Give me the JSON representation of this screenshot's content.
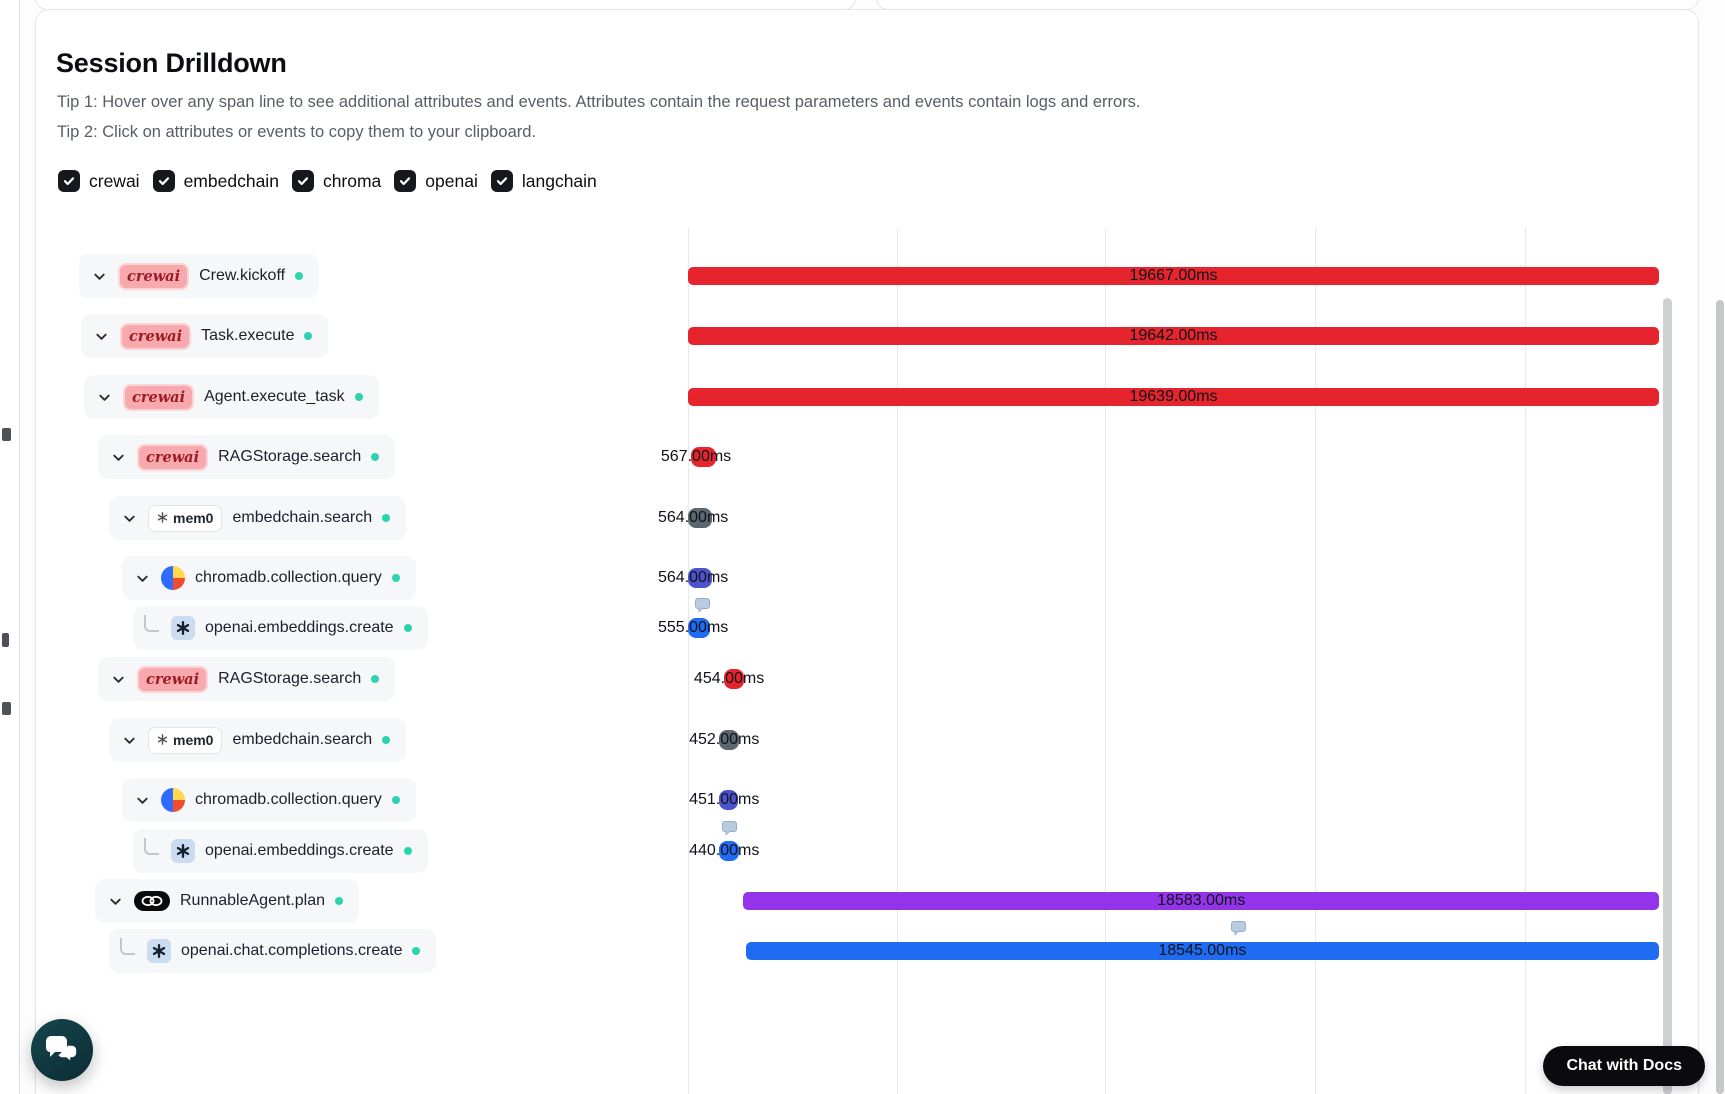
{
  "header": {
    "title": "Session Drilldown",
    "tip1": "Tip 1: Hover over any span line to see additional attributes and events. Attributes contain the request parameters and events contain logs and errors.",
    "tip2": "Tip 2: Click on attributes or events to copy them to your clipboard."
  },
  "filters": [
    {
      "label": "crewai",
      "checked": true
    },
    {
      "label": "embedchain",
      "checked": true
    },
    {
      "label": "chroma",
      "checked": true
    },
    {
      "label": "openai",
      "checked": true
    },
    {
      "label": "langchain",
      "checked": true
    }
  ],
  "logos": {
    "crewai": {
      "text": "crewai",
      "bg": "#f8a9ae",
      "fg": "#9b1c24"
    },
    "mem0": {
      "text": "mem0"
    },
    "chroma": {
      "colors": [
        "#ffd84d",
        "#ef4d2c",
        "#2f6bff"
      ]
    },
    "openai": {
      "bg": "#ccdcf0",
      "fg": "#16202e"
    },
    "langchain": {
      "bg": "#0a0a0a"
    }
  },
  "colors": {
    "red": "#e5242d",
    "slate": "#5c6671",
    "indigo": "#4d53cb",
    "blue": "#1f6bf1",
    "purple": "#9333ea",
    "dot": "#2bd4ae"
  },
  "chart_data": {
    "type": "trace-waterfall",
    "unit": "ms",
    "gridlines": 5,
    "spans": [
      {
        "name": "Crew.kickoff",
        "logo": "crewai",
        "depth": 0,
        "kind": "chevron",
        "duration_ms": 19667.0,
        "duration_label": "19667.00ms",
        "color": "red",
        "start_pct": 0,
        "width_pct": 100,
        "bubble_pct": null
      },
      {
        "name": "Task.execute",
        "logo": "crewai",
        "depth": 1,
        "kind": "chevron",
        "duration_ms": 19642.0,
        "duration_label": "19642.00ms",
        "color": "red",
        "start_pct": 0,
        "width_pct": 100,
        "bubble_pct": null
      },
      {
        "name": "Agent.execute_task",
        "logo": "crewai",
        "depth": 2,
        "kind": "chevron",
        "duration_ms": 19639.0,
        "duration_label": "19639.00ms",
        "color": "red",
        "start_pct": 0,
        "width_pct": 100,
        "bubble_pct": null
      },
      {
        "name": "RAGStorage.search",
        "logo": "crewai",
        "depth": 3,
        "kind": "chevron",
        "duration_ms": 567.0,
        "duration_label": "567.00ms",
        "color": "red",
        "start_pct": 0.3,
        "width_pct": 2.6,
        "bubble_pct": null
      },
      {
        "name": "embedchain.search",
        "logo": "mem0",
        "depth": 4,
        "kind": "chevron",
        "duration_ms": 564.0,
        "duration_label": "564.00ms",
        "color": "slate",
        "start_pct": 0,
        "width_pct": 2.5,
        "bubble_pct": null
      },
      {
        "name": "chromadb.collection.query",
        "logo": "chroma",
        "depth": 5,
        "kind": "chevron",
        "duration_ms": 564.0,
        "duration_label": "564.00ms",
        "color": "indigo",
        "start_pct": 0,
        "width_pct": 2.5,
        "bubble_pct": null
      },
      {
        "name": "openai.embeddings.create",
        "logo": "openai",
        "depth": 6,
        "kind": "leaf",
        "duration_ms": 555.0,
        "duration_label": "555.00ms",
        "color": "blue",
        "start_pct": 0,
        "width_pct": 2.3,
        "bubble_pct": 1.4
      },
      {
        "name": "RAGStorage.search",
        "logo": "crewai",
        "depth": 3,
        "kind": "chevron",
        "duration_ms": 454.0,
        "duration_label": "454.00ms",
        "color": "red",
        "start_pct": 3.7,
        "width_pct": 2.1,
        "bubble_pct": null
      },
      {
        "name": "embedchain.search",
        "logo": "mem0",
        "depth": 4,
        "kind": "chevron",
        "duration_ms": 452.0,
        "duration_label": "452.00ms",
        "color": "slate",
        "start_pct": 3.2,
        "width_pct": 2.1,
        "bubble_pct": null
      },
      {
        "name": "chromadb.collection.query",
        "logo": "chroma",
        "depth": 5,
        "kind": "chevron",
        "duration_ms": 451.0,
        "duration_label": "451.00ms",
        "color": "indigo",
        "start_pct": 3.2,
        "width_pct": 1.9,
        "bubble_pct": null
      },
      {
        "name": "openai.embeddings.create",
        "logo": "openai",
        "depth": 6,
        "kind": "leaf",
        "duration_ms": 440.0,
        "duration_label": "440.00ms",
        "color": "blue",
        "start_pct": 3.2,
        "width_pct": 2.1,
        "bubble_pct": 4.2
      },
      {
        "name": "RunnableAgent.plan",
        "logo": "langchain",
        "depth": 3,
        "kind": "chevron",
        "duration_ms": 18583.0,
        "duration_label": "18583.00ms",
        "color": "purple",
        "start_pct": 5.7,
        "width_pct": 94.3,
        "bubble_pct": null
      },
      {
        "name": "openai.chat.completions.create",
        "logo": "openai",
        "depth": 4,
        "kind": "leaf",
        "duration_ms": 18545.0,
        "duration_label": "18545.00ms",
        "color": "blue",
        "start_pct": 5.95,
        "width_pct": 94.05,
        "bubble_pct": 56.6
      }
    ]
  },
  "chat": {
    "docs_button": "Chat with Docs"
  }
}
